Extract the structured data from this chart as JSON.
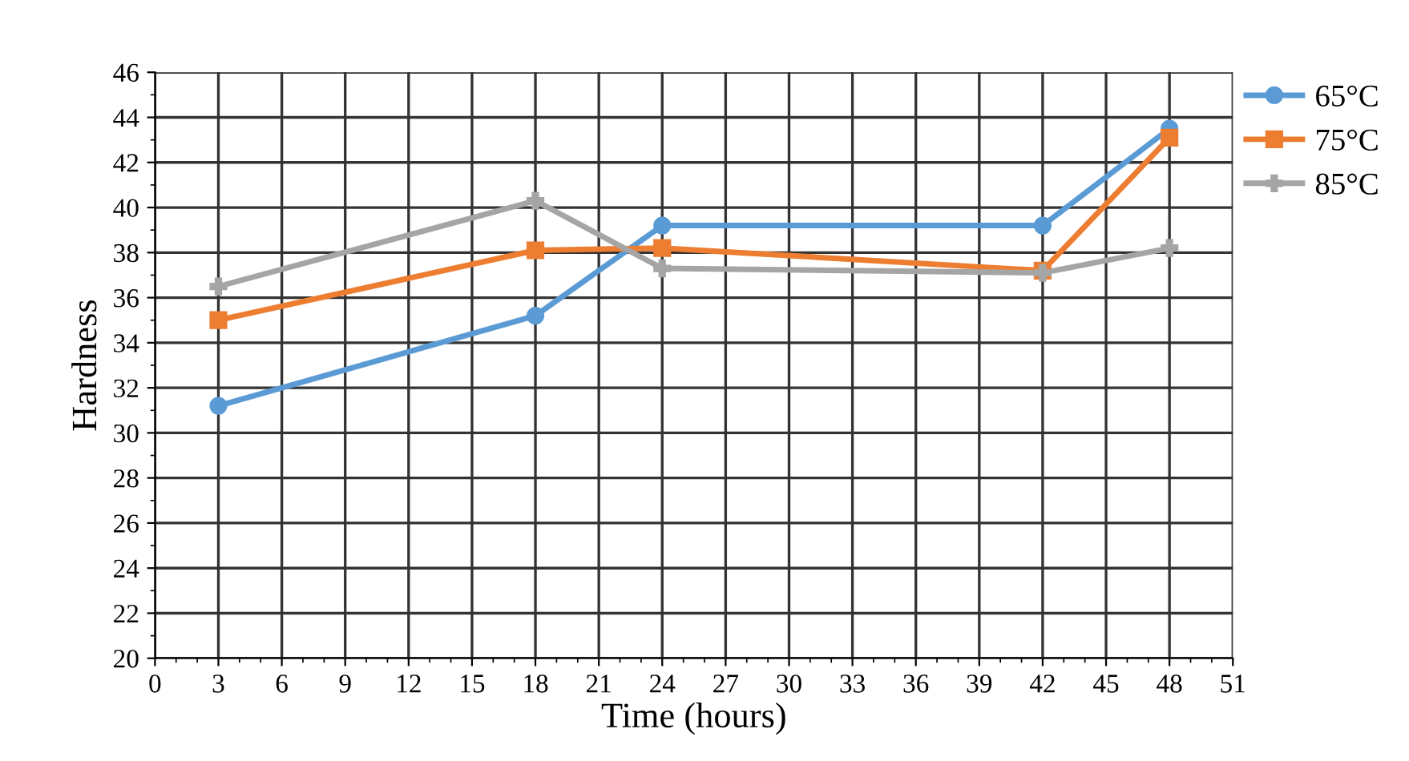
{
  "chart_data": {
    "type": "line",
    "xlabel": "Time (hours)",
    "ylabel": "Hardness",
    "x": [
      3,
      18,
      24,
      42,
      48
    ],
    "series": [
      {
        "name": "65°C",
        "color": "#5b9bd5",
        "marker": "circle",
        "values": [
          31.2,
          35.2,
          39.2,
          39.2,
          43.5
        ]
      },
      {
        "name": "75°C",
        "color": "#ed7d31",
        "marker": "square",
        "values": [
          35.0,
          38.1,
          38.2,
          37.2,
          43.1
        ]
      },
      {
        "name": "85°C",
        "color": "#a5a5a5",
        "marker": "cross",
        "values": [
          36.5,
          40.3,
          37.3,
          37.1,
          38.2
        ]
      }
    ],
    "xlim": [
      0,
      51
    ],
    "xticks": [
      0,
      3,
      6,
      9,
      12,
      15,
      18,
      21,
      24,
      27,
      30,
      33,
      36,
      39,
      42,
      45,
      48,
      51
    ],
    "ylim": [
      20,
      46
    ],
    "yticks": [
      20,
      22,
      24,
      26,
      28,
      30,
      32,
      34,
      36,
      38,
      40,
      42,
      44,
      46
    ],
    "grid": true,
    "legend": "right",
    "line_style": "solid"
  }
}
